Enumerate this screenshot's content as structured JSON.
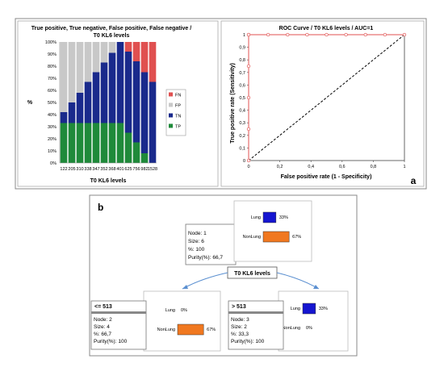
{
  "panel_a_label": "a",
  "panel_b_label": "b",
  "chart_data": [
    {
      "type": "bar",
      "title": "True positive, True negative, False positive, False negative / T0 KL6 levels",
      "title_lines": [
        "True positive, True negative, False positive, False negative /",
        "T0 KL6 levels"
      ],
      "xlabel": "T0 KL6 levels",
      "ylabel": "%",
      "stacked": true,
      "ylim": [
        0,
        100
      ],
      "y_ticks": [
        "0%",
        "10%",
        "20%",
        "30%",
        "40%",
        "50%",
        "60%",
        "70%",
        "80%",
        "90%",
        "100%"
      ],
      "categories": [
        "122",
        "205",
        "310",
        "338",
        "347",
        "352",
        "368",
        "401",
        "625",
        "756",
        "982",
        "1528"
      ],
      "series": [
        {
          "name": "TP",
          "color": "#1f8a3a",
          "values": [
            33,
            33,
            33,
            33,
            33,
            33,
            33,
            33,
            25,
            17,
            8,
            0
          ]
        },
        {
          "name": "TN",
          "color": "#1a2a8c",
          "values": [
            9,
            17,
            25,
            34,
            42,
            50,
            58,
            67,
            67,
            67,
            67,
            67
          ]
        },
        {
          "name": "FP",
          "color": "#c8c8c8",
          "values": [
            58,
            50,
            42,
            33,
            25,
            17,
            9,
            0,
            0,
            0,
            0,
            0
          ]
        },
        {
          "name": "FN",
          "color": "#e05050",
          "values": [
            0,
            0,
            0,
            0,
            0,
            0,
            0,
            0,
            8,
            16,
            25,
            33
          ]
        }
      ],
      "legend_order": [
        "FN",
        "FP",
        "TN",
        "TP"
      ],
      "legend_position": "right"
    },
    {
      "type": "line",
      "title": "ROC Curve / T0 KL6 levels / AUC=1",
      "xlabel": "False positive rate (1 - Specificity)",
      "ylabel": "True positive rate (Sensitivity)",
      "xlim": [
        0,
        1
      ],
      "ylim": [
        0,
        1
      ],
      "x_ticks": [
        "0",
        "0,2",
        "0,4",
        "0,6",
        "0,8",
        "1"
      ],
      "y_ticks": [
        "0",
        "0,1",
        "0,2",
        "0,3",
        "0,4",
        "0,5",
        "0,6",
        "0,7",
        "0,8",
        "0,9",
        "1"
      ],
      "series": [
        {
          "color": "#e05050",
          "x": [
            0,
            0,
            0,
            0,
            0,
            0,
            0.125,
            0.25,
            0.375,
            0.5,
            0.625,
            0.75,
            0.875,
            1
          ],
          "y": [
            0,
            0.25,
            0.5,
            0.75,
            1,
            1,
            1,
            1,
            1,
            1,
            1,
            1,
            1,
            1
          ]
        },
        {
          "color": "#000000",
          "style": "dashed",
          "x": [
            0,
            1
          ],
          "y": [
            0,
            1
          ]
        }
      ]
    }
  ],
  "tree": {
    "split_label": "T0 KL6 levels",
    "root": {
      "node": "Node: 1",
      "size": "Size: 6",
      "pct": "%: 100",
      "purity": "Purity(%): 66,7",
      "bars": [
        {
          "label": "Lung",
          "value": 33,
          "text": "33%",
          "color": "#1515d0"
        },
        {
          "label": "NonLung",
          "value": 67,
          "text": "67%",
          "color": "#f07820"
        }
      ]
    },
    "left": {
      "header": "<= 513",
      "node": "Node: 2",
      "size": "Size: 4",
      "pct": "%: 66,7",
      "purity": "Purity(%): 100",
      "bars": [
        {
          "label": "Lung",
          "value": 0,
          "text": "0%",
          "color": "#1515d0"
        },
        {
          "label": "NonLung",
          "value": 67,
          "text": "67%",
          "color": "#f07820"
        }
      ]
    },
    "right": {
      "header": "> 513",
      "node": "Node: 3",
      "size": "Size: 2",
      "pct": "%: 33,3",
      "purity": "Purity(%): 100",
      "bars": [
        {
          "label": "Lung",
          "value": 33,
          "text": "33%",
          "color": "#1515d0"
        },
        {
          "label": "NonLung",
          "value": 0,
          "text": "0%",
          "color": "#f07820"
        }
      ]
    }
  }
}
